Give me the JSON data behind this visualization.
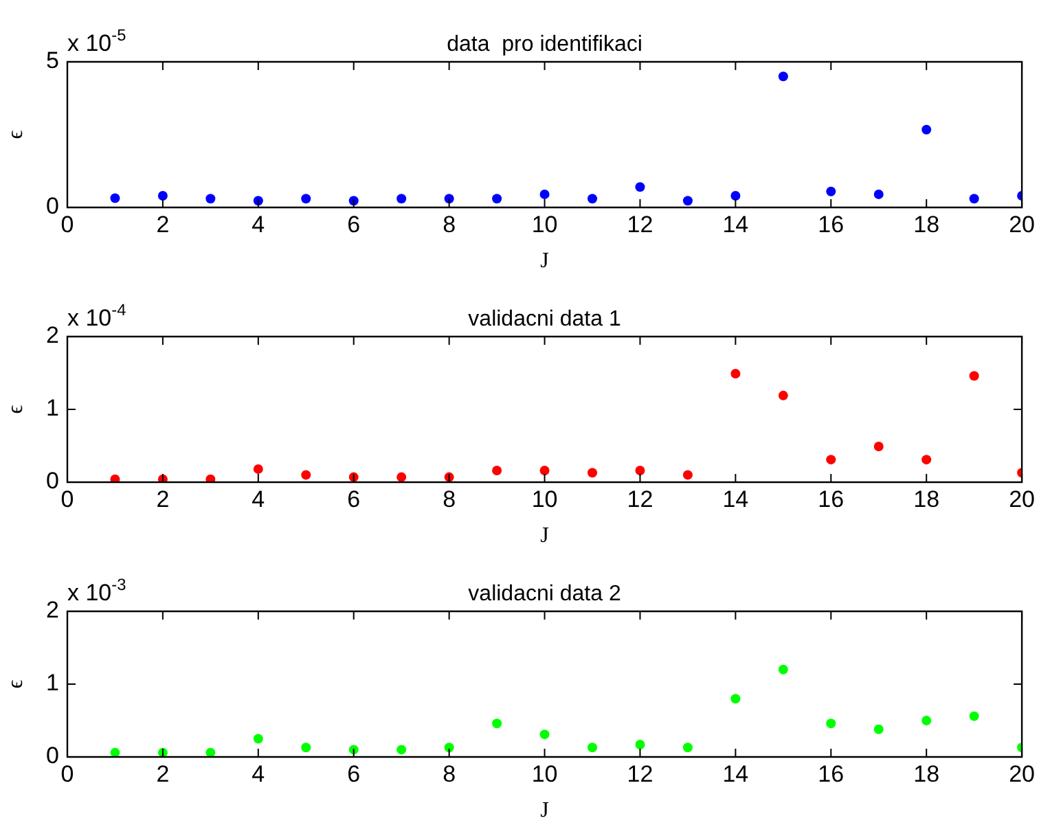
{
  "chart_data": [
    {
      "type": "scatter",
      "title": "data  pro identifikaci",
      "xlabel": "J",
      "ylabel": "ϵ",
      "annotations": [
        "x 10$^{-5}$"
      ],
      "x": [
        1,
        2,
        3,
        4,
        5,
        6,
        7,
        8,
        9,
        10,
        11,
        12,
        13,
        14,
        15,
        16,
        17,
        18,
        19,
        20
      ],
      "series": [
        {
          "color": "#0000ff",
          "values": [
            0.32,
            0.4,
            0.3,
            0.23,
            0.3,
            0.23,
            0.3,
            0.3,
            0.3,
            0.45,
            0.3,
            0.7,
            0.23,
            0.4,
            4.5,
            0.55,
            0.45,
            2.67,
            0.3,
            0.4
          ]
        }
      ],
      "xlim": [
        0,
        20
      ],
      "xticks": [
        0,
        2,
        4,
        6,
        8,
        10,
        12,
        14,
        16,
        18,
        20
      ],
      "ylim": [
        0,
        5
      ],
      "yticks": [
        0,
        5
      ],
      "marker": "circle"
    },
    {
      "type": "scatter",
      "title": "validacni data 1",
      "xlabel": "J",
      "ylabel": "ϵ",
      "annotations": [
        "x 10$^{-4}$"
      ],
      "x": [
        1,
        2,
        3,
        4,
        5,
        6,
        7,
        8,
        9,
        10,
        11,
        12,
        13,
        14,
        15,
        16,
        17,
        18,
        19,
        20
      ],
      "series": [
        {
          "color": "#ff0000",
          "values": [
            0.04,
            0.04,
            0.04,
            0.18,
            0.1,
            0.07,
            0.07,
            0.07,
            0.16,
            0.16,
            0.13,
            0.16,
            0.1,
            1.49,
            1.19,
            0.31,
            0.49,
            0.31,
            1.46,
            0.13
          ]
        }
      ],
      "xlim": [
        0,
        20
      ],
      "xticks": [
        0,
        2,
        4,
        6,
        8,
        10,
        12,
        14,
        16,
        18,
        20
      ],
      "ylim": [
        0,
        2
      ],
      "yticks": [
        0,
        1,
        2
      ],
      "marker": "circle"
    },
    {
      "type": "scatter",
      "title": "validacni data 2",
      "xlabel": "J",
      "ylabel": "ϵ",
      "annotations": [
        "x 10$^{-3}$"
      ],
      "x": [
        1,
        2,
        3,
        4,
        5,
        6,
        7,
        8,
        9,
        10,
        11,
        12,
        13,
        14,
        15,
        16,
        17,
        18,
        19,
        20
      ],
      "series": [
        {
          "color": "#00ff00",
          "values": [
            0.06,
            0.06,
            0.06,
            0.25,
            0.13,
            0.1,
            0.1,
            0.13,
            0.46,
            0.31,
            0.13,
            0.17,
            0.13,
            0.8,
            1.2,
            0.46,
            0.38,
            0.5,
            0.56,
            0.13
          ]
        }
      ],
      "xlim": [
        0,
        20
      ],
      "xticks": [
        0,
        2,
        4,
        6,
        8,
        10,
        12,
        14,
        16,
        18,
        20
      ],
      "ylim": [
        0,
        2
      ],
      "yticks": [
        0,
        1,
        2
      ],
      "marker": "circle"
    }
  ]
}
